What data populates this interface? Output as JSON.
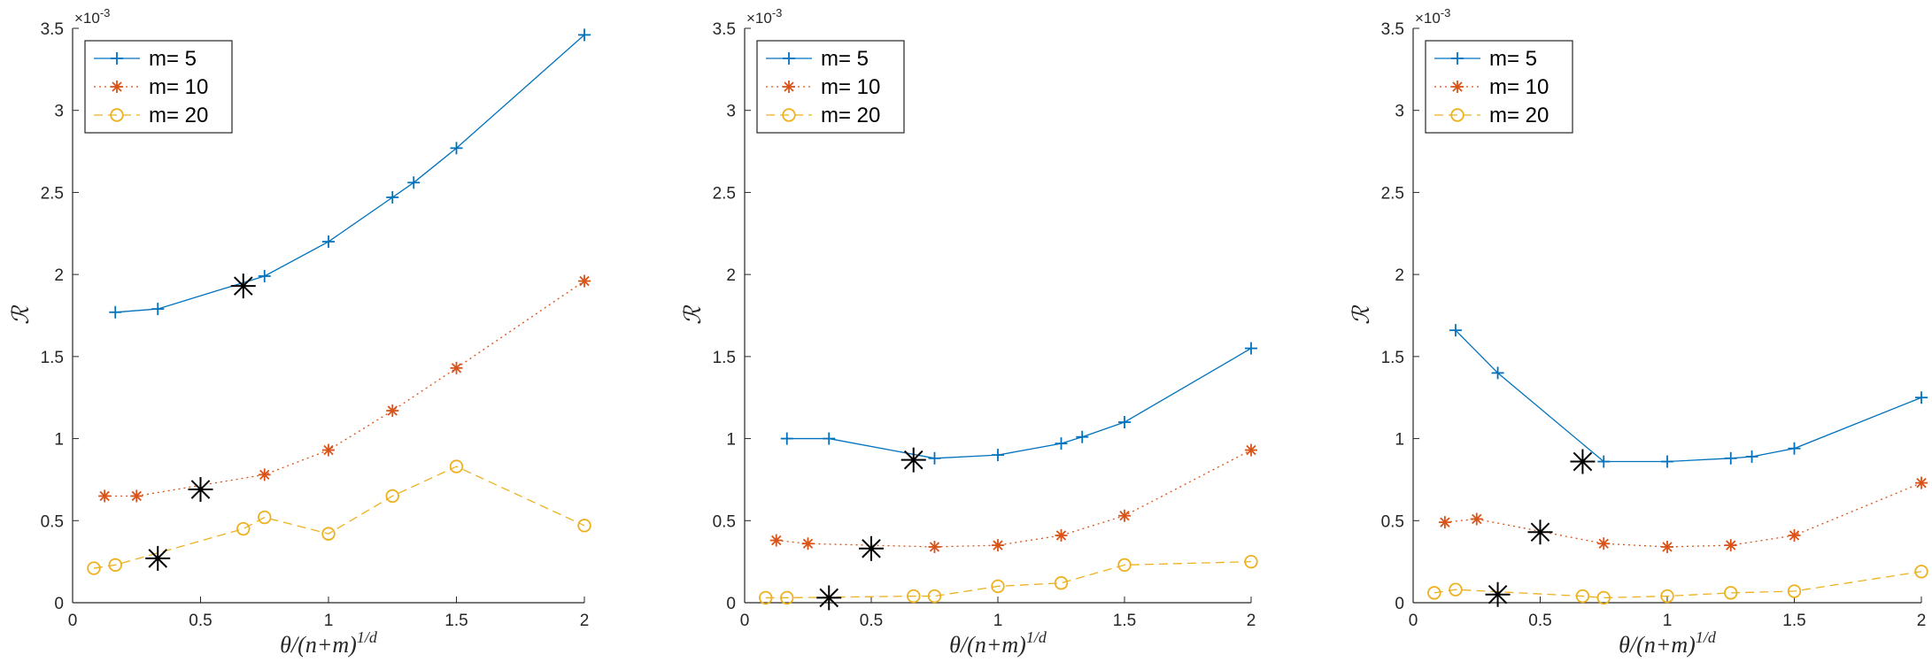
{
  "figure": {
    "background": "#ffffff"
  },
  "colors": {
    "m5": "#0072BD",
    "m10": "#D95319",
    "m20": "#EDB120",
    "marker": "#000000",
    "axis": "#262626"
  },
  "chart_data": [
    {
      "type": "line",
      "xlabel": "θ/(n+m)^{1/d}",
      "ylabel": "ℛ",
      "xlim": [
        0,
        2
      ],
      "ylim": [
        0,
        0.0035
      ],
      "y_exponent_label": "×10^-3",
      "xticks": [
        "0",
        "0.5",
        "1",
        "1.5",
        "2"
      ],
      "yticks": [
        "0",
        "0.5",
        "1",
        "1.5",
        "2",
        "2.5",
        "3",
        "3.5"
      ],
      "legend": {
        "placement": "top-left",
        "entries": [
          "m= 5",
          "m= 10",
          "m= 20"
        ]
      },
      "series": [
        {
          "name": "m= 5",
          "marker": "plus",
          "linestyle": "solid",
          "x": [
            0.167,
            0.333,
            0.75,
            1.0,
            1.25,
            1.333,
            1.5,
            2.0
          ],
          "y": [
            0.00177,
            0.00179,
            0.00199,
            0.0022,
            0.00247,
            0.00256,
            0.00277,
            0.00346
          ]
        },
        {
          "name": "m= 10",
          "marker": "asterisk",
          "linestyle": "dotted",
          "x": [
            0.125,
            0.25,
            0.75,
            1.0,
            1.25,
            1.5,
            2.0
          ],
          "y": [
            0.00065,
            0.00065,
            0.00078,
            0.00093,
            0.00117,
            0.00143,
            0.00196
          ]
        },
        {
          "name": "m= 20",
          "marker": "circle",
          "linestyle": "dashed",
          "x": [
            0.083,
            0.167,
            0.667,
            0.75,
            1.0,
            1.25,
            1.5,
            2.0
          ],
          "y": [
            0.00021,
            0.00023,
            0.00045,
            0.00052,
            0.00042,
            0.00065,
            0.00083,
            0.00047
          ]
        }
      ],
      "highlights": [
        {
          "x": 0.667,
          "y": 0.00193
        },
        {
          "x": 0.5,
          "y": 0.00069
        },
        {
          "x": 0.333,
          "y": 0.00027
        }
      ]
    },
    {
      "type": "line",
      "xlabel": "θ/(n+m)^{1/d}",
      "ylabel": "ℛ",
      "xlim": [
        0,
        2
      ],
      "ylim": [
        0,
        0.0035
      ],
      "y_exponent_label": "×10^-3",
      "xticks": [
        "0",
        "0.5",
        "1",
        "1.5",
        "2"
      ],
      "yticks": [
        "0",
        "0.5",
        "1",
        "1.5",
        "2",
        "2.5",
        "3",
        "3.5"
      ],
      "legend": {
        "placement": "top-left",
        "entries": [
          "m= 5",
          "m= 10",
          "m= 20"
        ]
      },
      "series": [
        {
          "name": "m= 5",
          "marker": "plus",
          "linestyle": "solid",
          "x": [
            0.167,
            0.333,
            0.75,
            1.0,
            1.25,
            1.333,
            1.5,
            2.0
          ],
          "y": [
            0.001,
            0.001,
            0.00088,
            0.0009,
            0.00097,
            0.00101,
            0.0011,
            0.00155
          ]
        },
        {
          "name": "m= 10",
          "marker": "asterisk",
          "linestyle": "dotted",
          "x": [
            0.125,
            0.25,
            0.75,
            1.0,
            1.25,
            1.5,
            2.0
          ],
          "y": [
            0.00038,
            0.00036,
            0.00034,
            0.00035,
            0.00041,
            0.00053,
            0.00093
          ]
        },
        {
          "name": "m= 20",
          "marker": "circle",
          "linestyle": "dashed",
          "x": [
            0.083,
            0.167,
            0.667,
            0.75,
            1.0,
            1.25,
            1.5,
            2.0
          ],
          "y": [
            3e-05,
            3e-05,
            4e-05,
            4e-05,
            0.0001,
            0.00012,
            0.00023,
            0.00025
          ]
        }
      ],
      "highlights": [
        {
          "x": 0.667,
          "y": 0.00087
        },
        {
          "x": 0.5,
          "y": 0.00033
        },
        {
          "x": 0.333,
          "y": 3e-05
        }
      ]
    },
    {
      "type": "line",
      "xlabel": "θ/(n+m)^{1/d}",
      "ylabel": "ℛ",
      "xlim": [
        0,
        2
      ],
      "ylim": [
        0,
        0.0035
      ],
      "y_exponent_label": "×10^-3",
      "xticks": [
        "0",
        "0.5",
        "1",
        "1.5",
        "2"
      ],
      "yticks": [
        "0",
        "0.5",
        "1",
        "1.5",
        "2",
        "2.5",
        "3",
        "3.5"
      ],
      "legend": {
        "placement": "top-left",
        "entries": [
          "m= 5",
          "m= 10",
          "m= 20"
        ]
      },
      "series": [
        {
          "name": "m= 5",
          "marker": "plus",
          "linestyle": "solid",
          "x": [
            0.167,
            0.333,
            0.75,
            1.0,
            1.25,
            1.333,
            1.5,
            2.0
          ],
          "y": [
            0.00166,
            0.0014,
            0.00086,
            0.00086,
            0.00088,
            0.00089,
            0.00094,
            0.00125
          ]
        },
        {
          "name": "m= 10",
          "marker": "asterisk",
          "linestyle": "dotted",
          "x": [
            0.125,
            0.25,
            0.75,
            1.0,
            1.25,
            1.5,
            2.0
          ],
          "y": [
            0.00049,
            0.00051,
            0.00036,
            0.00034,
            0.00035,
            0.00041,
            0.00073
          ]
        },
        {
          "name": "m= 20",
          "marker": "circle",
          "linestyle": "dashed",
          "x": [
            0.083,
            0.167,
            0.667,
            0.75,
            1.0,
            1.25,
            1.5,
            2.0
          ],
          "y": [
            6e-05,
            8e-05,
            4e-05,
            3e-05,
            4e-05,
            6e-05,
            7e-05,
            0.00019
          ]
        }
      ],
      "highlights": [
        {
          "x": 0.667,
          "y": 0.00086
        },
        {
          "x": 0.5,
          "y": 0.00043
        },
        {
          "x": 0.333,
          "y": 5e-05
        }
      ]
    }
  ]
}
